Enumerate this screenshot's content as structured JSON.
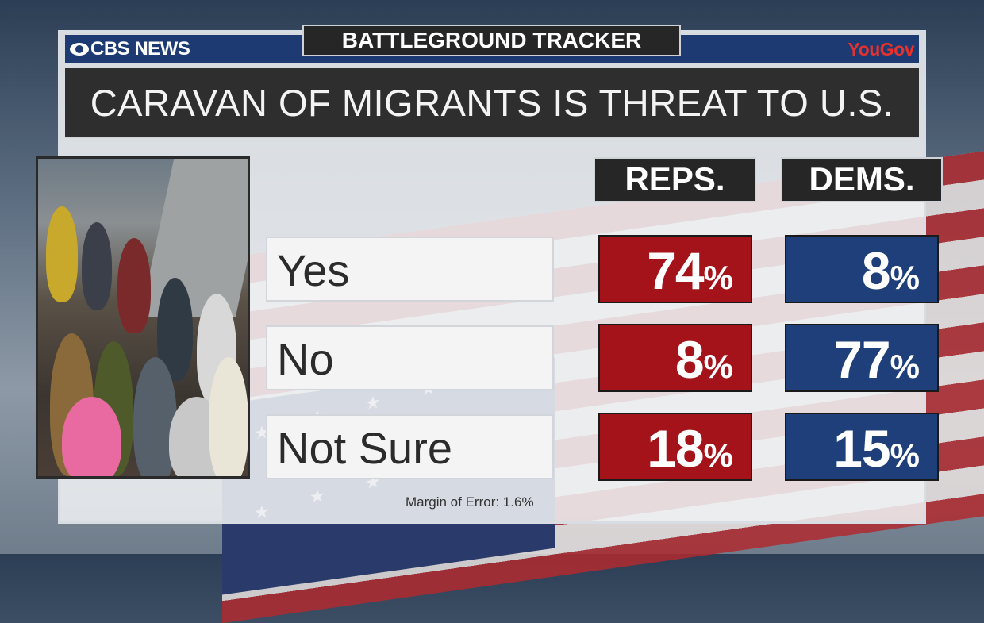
{
  "header": {
    "network": "CBS NEWS",
    "segment": "BATTLEGROUND TRACKER",
    "pollster": "YouGov",
    "title": "CARAVAN OF MIGRANTS IS THREAT TO U.S."
  },
  "colors": {
    "reps": "#a5131a",
    "dems": "#1e3f79",
    "header_bar": "#1d3b72"
  },
  "photo": {
    "subject": "crowd-of-migrants-photo"
  },
  "chart_data": {
    "type": "table",
    "title": "CARAVAN OF MIGRANTS IS THREAT TO U.S.",
    "columns": [
      "REPS.",
      "DEMS."
    ],
    "rows": [
      {
        "label": "Yes",
        "values": [
          74,
          8
        ]
      },
      {
        "label": "No",
        "values": [
          8,
          77
        ]
      },
      {
        "label": "Not Sure",
        "values": [
          18,
          15
        ]
      }
    ],
    "unit": "%"
  },
  "footer": {
    "moe": "Margin of Error: 1.6%"
  }
}
